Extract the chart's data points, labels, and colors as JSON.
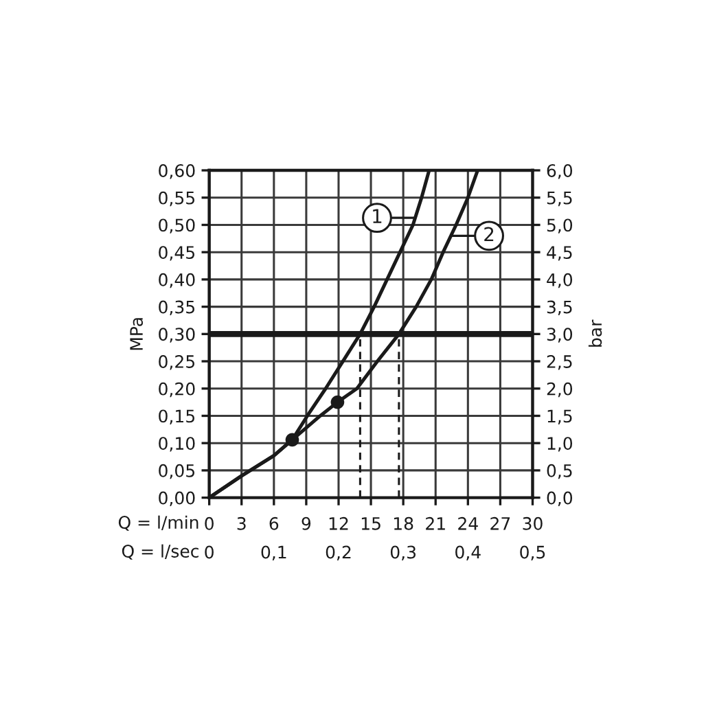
{
  "chart_data": {
    "type": "line",
    "xlabel": "Q = l/min",
    "x2label": "Q = l/sec",
    "ylabel": "MPa",
    "y2label": "bar",
    "xlim": [
      0,
      30
    ],
    "xticks": [
      0,
      3,
      6,
      9,
      12,
      15,
      18,
      21,
      24,
      27,
      30
    ],
    "x2lim": [
      0,
      0.5
    ],
    "x2ticks": [
      0,
      {
        "value": 0.1,
        "label": "0,1"
      },
      {
        "value": 0.2,
        "label": "0,2"
      },
      {
        "value": 0.3,
        "label": "0,3"
      },
      {
        "value": 0.4,
        "label": "0,4"
      },
      {
        "value": 0.5,
        "label": "0,5"
      }
    ],
    "ylim": [
      0,
      0.6
    ],
    "yticks": [
      {
        "value": 0,
        "label": "0,00"
      },
      {
        "value": 0.05,
        "label": "0,05"
      },
      {
        "value": 0.1,
        "label": "0,10"
      },
      {
        "value": 0.15,
        "label": "0,15"
      },
      {
        "value": 0.2,
        "label": "0,20"
      },
      {
        "value": 0.25,
        "label": "0,25"
      },
      {
        "value": 0.3,
        "label": "0,30"
      },
      {
        "value": 0.35,
        "label": "0,35"
      },
      {
        "value": 0.4,
        "label": "0,40"
      },
      {
        "value": 0.45,
        "label": "0,45"
      },
      {
        "value": 0.5,
        "label": "0,50"
      },
      {
        "value": 0.55,
        "label": "0,55"
      },
      {
        "value": 0.6,
        "label": "0,60"
      }
    ],
    "y2lim": [
      0,
      6
    ],
    "y2ticks": [
      {
        "value": 0,
        "label": "0,0"
      },
      {
        "value": 0.5,
        "label": "0,5"
      },
      {
        "value": 1,
        "label": "1,0"
      },
      {
        "value": 1.5,
        "label": "1,5"
      },
      {
        "value": 2,
        "label": "2,0"
      },
      {
        "value": 2.5,
        "label": "2,5"
      },
      {
        "value": 3,
        "label": "3,0"
      },
      {
        "value": 3.5,
        "label": "3,5"
      },
      {
        "value": 4,
        "label": "4,0"
      },
      {
        "value": 4.5,
        "label": "4,5"
      },
      {
        "value": 5,
        "label": "5,0"
      },
      {
        "value": 5.5,
        "label": "5,5"
      },
      {
        "value": 6,
        "label": "6,0"
      }
    ],
    "grid": true,
    "series": [
      {
        "name": "1",
        "color": "#1a1a1a",
        "x": [
          0,
          3,
          6,
          7.7,
          9.1,
          10.8,
          12.4,
          14.0,
          15.3,
          16.5,
          17.7,
          18.9,
          19.7,
          20.4
        ],
        "values": [
          0,
          0.04,
          0.077,
          0.106,
          0.15,
          0.2,
          0.25,
          0.3,
          0.35,
          0.4,
          0.45,
          0.5,
          0.55,
          0.6
        ]
      },
      {
        "name": "2",
        "color": "#1a1a1a",
        "x": [
          0,
          3,
          6,
          7.7,
          10.3,
          11.9,
          13.7,
          15.6,
          17.6,
          19.2,
          20.6,
          21.7,
          22.9,
          24.0,
          24.9
        ],
        "values": [
          0,
          0.04,
          0.077,
          0.106,
          0.15,
          0.175,
          0.2,
          0.25,
          0.3,
          0.35,
          0.4,
          0.45,
          0.5,
          0.55,
          0.6
        ]
      },
      {
        "type": "scatter",
        "color": "#1a1a1a",
        "marker": "circle",
        "x": [
          7.7,
          11.9
        ],
        "values": [
          0.106,
          0.175
        ]
      },
      {
        "color": "#1a1a1a",
        "line_style": "dashed",
        "x": [
          14.0,
          14.0
        ],
        "values": [
          0,
          0.3
        ]
      },
      {
        "color": "#1a1a1a",
        "line_style": "dashed",
        "x": [
          17.6,
          17.6
        ],
        "values": [
          0,
          0.3
        ]
      }
    ],
    "ref_lines": [
      {
        "axis": "y",
        "value": 0.3,
        "color": "#1a1a1a"
      }
    ]
  }
}
